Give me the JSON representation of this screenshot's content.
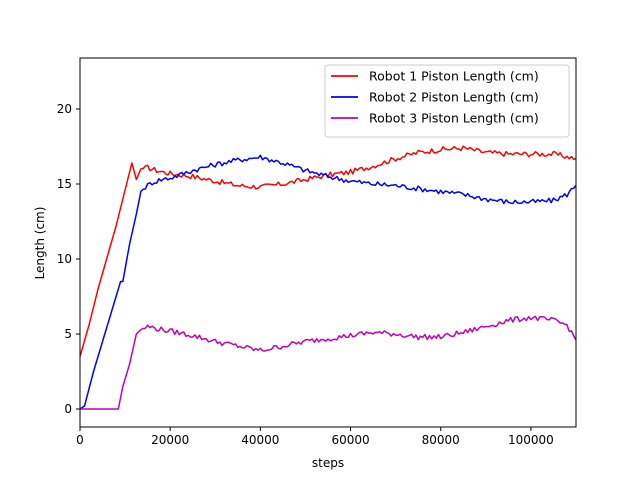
{
  "chart_data": {
    "type": "line",
    "title": "",
    "xlabel": "steps",
    "ylabel": "Length (cm)",
    "xlim": [
      0,
      110000
    ],
    "ylim": [
      -1.2,
      23.4
    ],
    "xticks": [
      0,
      20000,
      40000,
      60000,
      80000,
      100000
    ],
    "yticks": [
      0,
      5,
      10,
      15,
      20
    ],
    "grid": false,
    "legend_position": "top-right",
    "series": [
      {
        "name": "Robot 1 Piston Length (cm)",
        "color": "#ff0000",
        "x": [
          0,
          2000,
          4000,
          6000,
          8000,
          10000,
          11500,
          12500,
          13500,
          15000,
          17000,
          20000,
          25000,
          30000,
          35000,
          40000,
          45000,
          50000,
          55000,
          60000,
          65000,
          70000,
          75000,
          80000,
          85000,
          90000,
          95000,
          100000,
          105000,
          110000
        ],
        "y": [
          3.5,
          5.6,
          8.0,
          10.1,
          12.2,
          14.6,
          16.4,
          15.3,
          16.0,
          16.1,
          15.9,
          15.7,
          15.5,
          15.2,
          14.9,
          14.8,
          15.0,
          15.3,
          15.6,
          15.8,
          16.2,
          16.7,
          17.1,
          17.3,
          17.4,
          17.1,
          17.0,
          17.0,
          17.0,
          16.7
        ]
      },
      {
        "name": "Robot 2 Piston Length (cm)",
        "color": "#0000ff",
        "x": [
          0,
          1000,
          3000,
          5000,
          7000,
          9000,
          9500,
          11000,
          12500,
          13500,
          14500,
          16000,
          18000,
          20000,
          25000,
          30000,
          35000,
          40000,
          45000,
          50000,
          55000,
          60000,
          65000,
          70000,
          75000,
          80000,
          85000,
          90000,
          95000,
          100000,
          105000,
          108000,
          110000
        ],
        "y": [
          0,
          0.2,
          2.5,
          4.5,
          6.5,
          8.5,
          8.5,
          11.0,
          13.0,
          14.5,
          14.8,
          15.1,
          15.3,
          15.4,
          15.9,
          16.3,
          16.6,
          16.8,
          16.4,
          15.9,
          15.5,
          15.2,
          15.0,
          14.9,
          14.7,
          14.5,
          14.3,
          14.0,
          13.8,
          13.8,
          13.9,
          14.3,
          14.9
        ]
      },
      {
        "name": "Robot 3 Piston Length (cm)",
        "color": "#bf00bf",
        "x": [
          0,
          4000,
          8500,
          9500,
          11000,
          12500,
          13500,
          15000,
          18000,
          20000,
          25000,
          30000,
          35000,
          40000,
          45000,
          50000,
          55000,
          60000,
          65000,
          70000,
          75000,
          80000,
          85000,
          90000,
          95000,
          100000,
          105000,
          108000,
          110000
        ],
        "y": [
          0,
          0,
          0,
          1.5,
          3.0,
          5.0,
          5.3,
          5.5,
          5.3,
          5.2,
          4.9,
          4.5,
          4.2,
          3.9,
          4.2,
          4.5,
          4.7,
          4.9,
          5.1,
          5.0,
          4.8,
          4.8,
          5.1,
          5.5,
          5.9,
          6.1,
          5.9,
          5.6,
          4.6
        ]
      }
    ]
  }
}
